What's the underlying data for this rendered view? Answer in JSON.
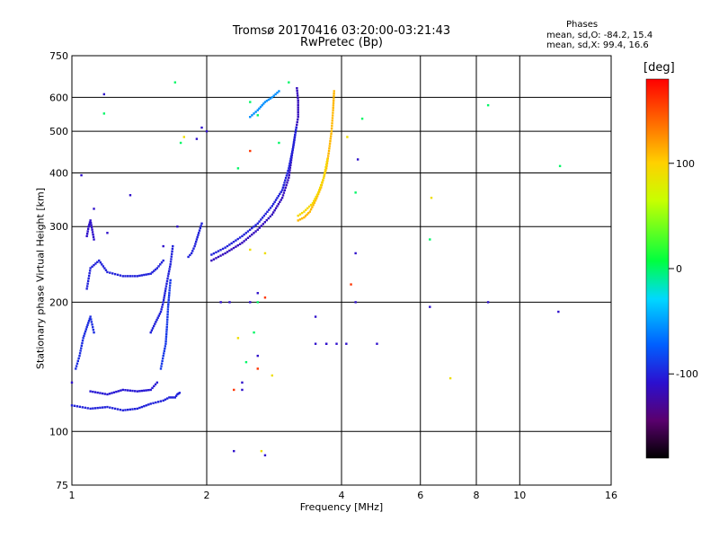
{
  "chart_data": {
    "type": "scatter",
    "title": "Tromsø 20170416 03:20:00-03:21:43",
    "subtitle": "RwPretec (Bp)",
    "xlabel": "Frequency [MHz]",
    "ylabel": "Stationary phase Virtual Height [km]",
    "x_scale": "log",
    "y_scale": "log",
    "xlim": [
      1,
      16
    ],
    "ylim": [
      75,
      750
    ],
    "x_ticks": [
      1,
      2,
      4,
      6,
      8,
      10,
      16
    ],
    "x_tick_labels": [
      "1",
      "2",
      "4",
      "6",
      "8",
      "10",
      "16"
    ],
    "y_ticks": [
      75,
      100,
      200,
      300,
      400,
      500,
      600,
      750
    ],
    "y_tick_labels": [
      "75",
      "100",
      "200",
      "300",
      "400",
      "500",
      "600",
      "750"
    ],
    "grid": true,
    "legend": {
      "title": "Phases",
      "stats": [
        "mean, sd,O: -84.2, 15.4",
        "mean, sd,X:  99.4, 16.6"
      ]
    },
    "colorbar": {
      "label": "[deg]",
      "range": [
        -180,
        180
      ],
      "ticks": [
        100,
        0,
        -100
      ],
      "tick_labels": [
        "100",
        "0",
        "-100"
      ],
      "position": "right"
    },
    "series": [
      {
        "traces": [
          {
            "x": [
              1.0,
              1.1,
              1.2,
              1.3,
              1.4,
              1.5,
              1.6,
              1.65,
              1.7,
              1.72,
              1.74
            ],
            "y": [
              115,
              113,
              114,
              112,
              113,
              116,
              118,
              120,
              120,
              122,
              123
            ],
            "phase": -100
          },
          {
            "x": [
              1.02,
              1.04,
              1.06,
              1.08,
              1.1,
              1.12
            ],
            "y": [
              140,
              150,
              165,
              175,
              185,
              170
            ],
            "phase": -95
          },
          {
            "x": [
              1.1,
              1.2,
              1.3,
              1.4,
              1.5,
              1.55
            ],
            "y": [
              124,
              122,
              125,
              124,
              125,
              130
            ],
            "phase": -105
          },
          {
            "x": [
              1.5,
              1.54,
              1.58,
              1.6,
              1.62,
              1.64,
              1.66,
              1.68
            ],
            "y": [
              170,
              180,
              190,
              200,
              215,
              230,
              245,
              270
            ],
            "phase": -100
          },
          {
            "x": [
              1.58,
              1.6,
              1.62,
              1.63,
              1.64,
              1.65,
              1.66
            ],
            "y": [
              140,
              150,
              160,
              175,
              195,
              210,
              225
            ],
            "phase": -90
          },
          {
            "x": [
              1.08,
              1.1,
              1.15,
              1.2,
              1.3,
              1.4,
              1.5,
              1.55,
              1.6
            ],
            "y": [
              215,
              240,
              250,
              235,
              230,
              230,
              233,
              240,
              250
            ],
            "phase": -100
          },
          {
            "x": [
              1.08,
              1.09,
              1.1,
              1.11,
              1.12
            ],
            "y": [
              285,
              300,
              310,
              295,
              280
            ],
            "phase": -110
          },
          {
            "x": [
              1.82,
              1.85,
              1.88,
              1.9,
              1.92,
              1.95
            ],
            "y": [
              255,
              260,
              270,
              280,
              290,
              305
            ],
            "phase": -100
          },
          {
            "x": [
              2.05,
              2.2,
              2.4,
              2.6,
              2.8,
              2.95,
              3.05,
              3.1,
              3.15,
              3.2,
              3.2,
              3.18
            ],
            "y": [
              250,
              260,
              275,
              295,
              320,
              350,
              390,
              440,
              490,
              540,
              590,
              630
            ],
            "phase": -115
          },
          {
            "x": [
              2.05,
              2.2,
              2.4,
              2.6,
              2.8,
              2.95,
              3.05,
              3.12,
              3.17
            ],
            "y": [
              258,
              268,
              285,
              305,
              335,
              365,
              410,
              460,
              510
            ],
            "phase": -100
          },
          {
            "x": [
              2.5,
              2.6,
              2.7,
              2.8,
              2.9
            ],
            "y": [
              540,
              560,
              585,
              600,
              620
            ],
            "phase": -55
          },
          {
            "x": [
              3.2,
              3.3,
              3.4,
              3.5,
              3.6,
              3.7,
              3.75,
              3.8,
              3.83,
              3.85
            ],
            "y": [
              310,
              315,
              325,
              345,
              370,
              410,
              450,
              500,
              560,
              620
            ],
            "phase": 110
          },
          {
            "x": [
              3.2,
              3.3,
              3.45,
              3.55,
              3.65,
              3.72
            ],
            "y": [
              318,
              325,
              340,
              360,
              390,
              430
            ],
            "phase": 95
          }
        ],
        "scattered": [
          {
            "x": [
              1.18,
              1.35,
              1.05,
              1.0,
              1.12,
              1.2,
              1.6,
              1.72,
              2.3,
              2.4,
              2.7,
              2.6,
              2.5,
              2.4,
              2.25,
              2.15,
              2.0,
              1.9,
              1.95,
              2.6,
              3.7,
              4.3,
              4.3,
              4.35,
              3.5,
              3.5,
              3.7,
              3.9,
              4.1,
              4.8,
              6.3,
              8.5,
              12.2
            ],
            "y": [
              610,
              355,
              395,
              130,
              330,
              290,
              270,
              300,
              90,
              125,
              88,
              150,
              200,
              130,
              200,
              200,
              500,
              480,
              510,
              210,
              160,
              200,
              260,
              430,
              160,
              185,
              160,
              160,
              160,
              160,
              195,
              200,
              190
            ],
            "phase": -110
          },
          {
            "x": [
              1.18,
              2.6,
              2.9,
              4.45,
              2.35,
              4.3,
              6.3,
              8.5,
              12.3,
              1.75,
              1.7,
              2.55,
              2.45,
              3.05,
              2.5,
              2.6
            ],
            "y": [
              550,
              200,
              470,
              535,
              410,
              360,
              280,
              575,
              415,
              470,
              650,
              170,
              145,
              650,
              585,
              545
            ],
            "phase": 0
          },
          {
            "x": [
              1.78,
              2.35,
              2.65,
              4.12,
              7.0,
              2.8,
              2.5,
              2.7,
              6.35
            ],
            "y": [
              485,
              165,
              90,
              485,
              133,
              135,
              265,
              260,
              350
            ],
            "phase": 90
          },
          {
            "x": [
              2.3,
              2.5,
              2.7,
              4.2,
              2.6
            ],
            "y": [
              125,
              450,
              205,
              220,
              140
            ],
            "phase": 160
          }
        ]
      }
    ]
  }
}
